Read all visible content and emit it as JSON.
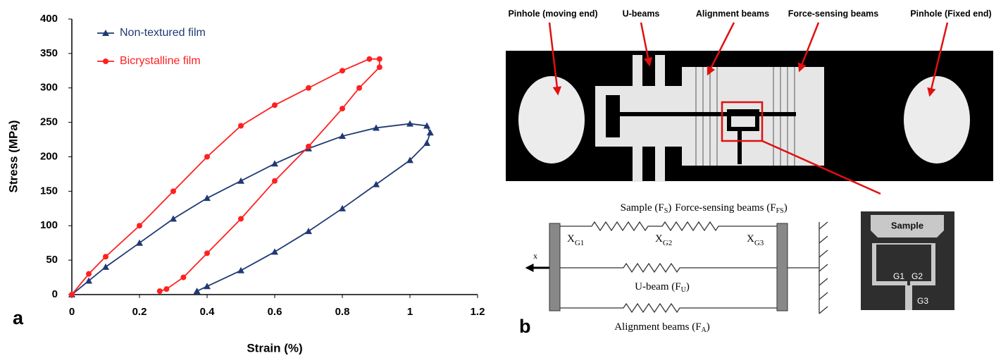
{
  "chart_data": {
    "type": "line",
    "panel_label": "a",
    "x_label": "Strain (%)",
    "y_label": "Stress (MPa)",
    "xlim": [
      0,
      1.2
    ],
    "xticks": [
      0,
      0.2,
      0.4,
      0.6,
      0.8,
      1,
      1.2
    ],
    "ylim": [
      0,
      400
    ],
    "yticks": [
      0,
      50,
      100,
      150,
      200,
      250,
      300,
      350,
      400
    ],
    "grid": false,
    "legend": "top-left",
    "series": [
      {
        "name": "Non-textured film",
        "color": "#1f3a73",
        "marker": "triangle",
        "x": [
          0,
          0.05,
          0.1,
          0.2,
          0.3,
          0.4,
          0.5,
          0.6,
          0.7,
          0.8,
          0.9,
          1.0,
          1.05,
          1.06,
          1.05,
          1.0,
          0.9,
          0.8,
          0.7,
          0.6,
          0.5,
          0.4,
          0.37
        ],
        "values": [
          0,
          20,
          40,
          75,
          110,
          140,
          165,
          190,
          212,
          230,
          242,
          248,
          245,
          235,
          220,
          195,
          160,
          125,
          92,
          62,
          35,
          12,
          5
        ]
      },
      {
        "name": "Bicrystalline film",
        "color": "#ff2020",
        "marker": "circle",
        "x": [
          0,
          0.05,
          0.1,
          0.2,
          0.3,
          0.4,
          0.5,
          0.6,
          0.7,
          0.8,
          0.88,
          0.91,
          0.91,
          0.85,
          0.8,
          0.7,
          0.6,
          0.5,
          0.4,
          0.33,
          0.28,
          0.26
        ],
        "values": [
          0,
          30,
          55,
          100,
          150,
          200,
          245,
          275,
          300,
          325,
          342,
          342,
          330,
          300,
          270,
          215,
          165,
          110,
          60,
          25,
          8,
          5
        ]
      }
    ]
  },
  "diagram": {
    "panel_label": "b",
    "callouts": [
      "Pinhole (moving end)",
      "U-beams",
      "Alignment beams",
      "Force-sensing beams",
      "Pinhole (Fixed end)"
    ],
    "springs": [
      {
        "before": "Sample (F",
        "sub": "S",
        "after": ")"
      },
      {
        "before": "Force-sensing beams (F",
        "sub": "FS",
        "after": ")"
      },
      {
        "before": "U-beam (F",
        "sub": "U",
        "after": ")"
      },
      {
        "before": "Alignment beams (F",
        "sub": "A",
        "after": ")"
      }
    ],
    "gaps": [
      {
        "base": "X",
        "sub": "G1"
      },
      {
        "base": "X",
        "sub": "G2"
      },
      {
        "base": "X",
        "sub": "G3"
      }
    ],
    "direction": "x",
    "inset": {
      "sample": "Sample",
      "gaps": [
        "G1",
        "G2",
        "G3"
      ]
    }
  }
}
